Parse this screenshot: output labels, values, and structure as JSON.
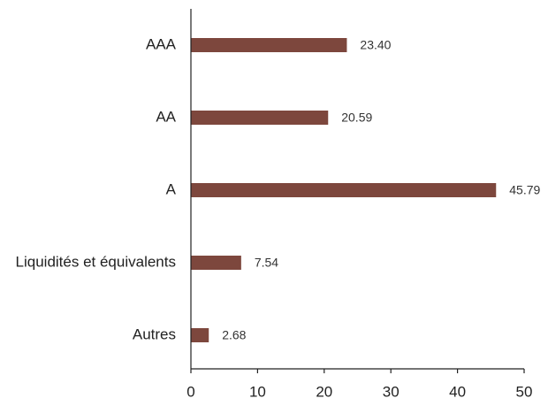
{
  "chart_data": {
    "type": "bar",
    "orientation": "horizontal",
    "title": "",
    "xlabel": "",
    "ylabel": "",
    "categories": [
      "AAA",
      "AA",
      "A",
      "Liquidités et équivalents",
      "Autres"
    ],
    "values": [
      23.4,
      20.59,
      45.79,
      7.54,
      2.68
    ],
    "value_labels": [
      "23.40",
      "20.59",
      "45.79",
      "7.54",
      "2.68"
    ],
    "xlim": [
      0,
      50
    ],
    "x_ticks": [
      0,
      10,
      20,
      30,
      40,
      50
    ],
    "grid": false,
    "legend": "none",
    "bar_color": "#7d473d",
    "axis_color": "#222222"
  }
}
